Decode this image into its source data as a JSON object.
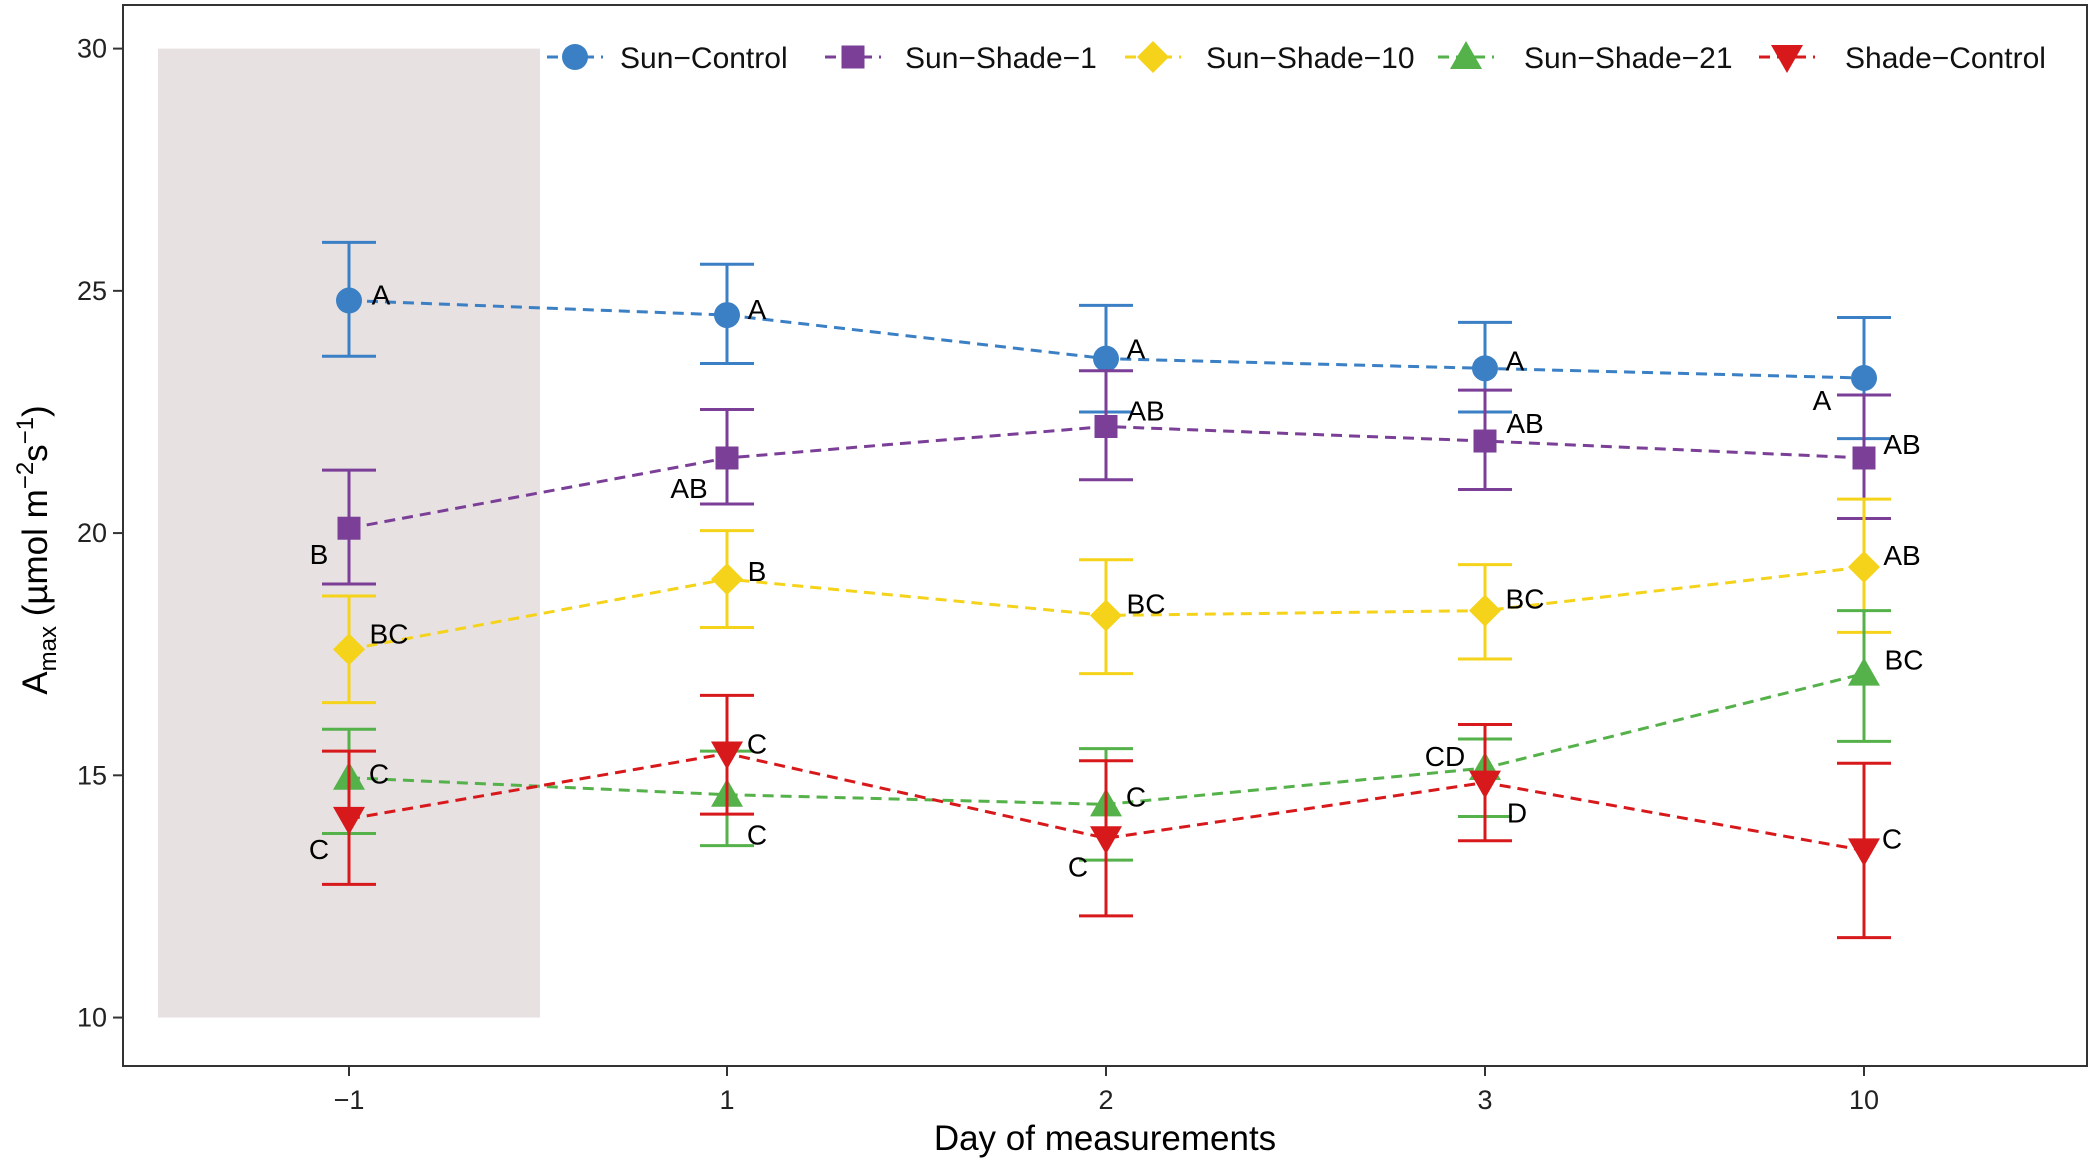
{
  "chart_data": {
    "type": "line",
    "categories": [
      "−1",
      "1",
      "2",
      "3",
      "10"
    ],
    "xlabel": "Day of measurements",
    "ylabel_main": "A",
    "ylabel_sub": "max",
    "ylabel_units_pre": " (µmol m",
    "ylabel_exp1": "−2",
    "ylabel_mid": "s",
    "ylabel_exp2": "−1",
    "ylabel_post": ")",
    "ylim": [
      9,
      30.9
    ],
    "yticks": [
      10,
      15,
      20,
      25,
      30
    ],
    "grid": false,
    "legend_position": "top-right",
    "shaded_region": {
      "category": "−1",
      "y_range": [
        10,
        30
      ],
      "color": "#e7e1e2"
    },
    "series": [
      {
        "name": "Sun−Control",
        "color": "#3b7fc4",
        "marker": "circle",
        "values": [
          24.8,
          24.5,
          23.6,
          23.4,
          23.2
        ],
        "error_low": [
          23.65,
          23.5,
          22.5,
          22.5,
          21.95
        ],
        "error_high": [
          26.0,
          25.55,
          24.7,
          24.35,
          24.45
        ],
        "sig_labels": [
          "A",
          "A",
          "A",
          "A",
          "A"
        ]
      },
      {
        "name": "Sun−Shade−1",
        "color": "#7b3f98",
        "marker": "square",
        "values": [
          20.1,
          21.55,
          22.2,
          21.9,
          21.55
        ],
        "error_low": [
          18.95,
          20.6,
          21.1,
          20.9,
          20.3
        ],
        "error_high": [
          21.3,
          22.55,
          23.35,
          22.95,
          22.85
        ],
        "sig_labels": [
          "B",
          "AB",
          "AB",
          "AB",
          "AB"
        ]
      },
      {
        "name": "Sun−Shade−10",
        "color": "#f5d31a",
        "marker": "diamond",
        "values": [
          17.6,
          19.05,
          18.3,
          18.4,
          19.3
        ],
        "error_low": [
          16.5,
          18.05,
          17.1,
          17.4,
          17.95
        ],
        "error_high": [
          18.7,
          20.05,
          19.45,
          19.35,
          20.7
        ],
        "sig_labels": [
          "BC",
          "B",
          "BC",
          "BC",
          "AB"
        ]
      },
      {
        "name": "Sun−Shade−21",
        "color": "#55b14a",
        "marker": "triangle-up",
        "values": [
          14.95,
          14.6,
          14.4,
          15.15,
          17.1
        ],
        "error_low": [
          13.8,
          13.55,
          13.25,
          14.15,
          15.7
        ],
        "error_high": [
          15.95,
          15.5,
          15.55,
          15.75,
          18.4
        ],
        "sig_labels": [
          "C",
          "C",
          "C",
          "CD",
          "BC"
        ]
      },
      {
        "name": "Shade−Control",
        "color": "#d7191c",
        "marker": "triangle-down",
        "values": [
          14.1,
          15.45,
          13.7,
          14.85,
          13.45
        ],
        "error_low": [
          12.75,
          14.2,
          12.1,
          13.65,
          11.65
        ],
        "error_high": [
          15.5,
          16.65,
          15.3,
          16.05,
          15.25
        ],
        "sig_labels": [
          "C",
          "C",
          "C",
          "D",
          "C"
        ]
      }
    ]
  }
}
